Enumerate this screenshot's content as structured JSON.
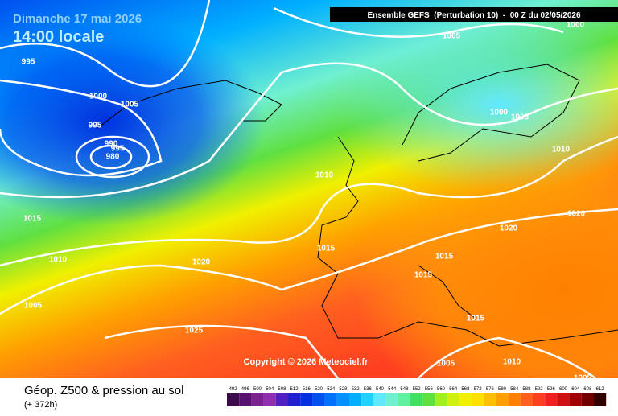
{
  "header": {
    "date": "Dimanche 17 mai 2026",
    "time": "14:00 locale",
    "model": "Ensemble GEFS  (Perturbation 10)  -  00 Z du 02/05/2026"
  },
  "isobar_labels": [
    "1000",
    "1005",
    "995",
    "1000",
    "1005",
    "995",
    "990",
    "995",
    "980",
    "1000",
    "1005",
    "1010",
    "1010",
    "1015",
    "1020",
    "1020",
    "1010",
    "1020",
    "1015",
    "1015",
    "1015",
    "1005",
    "1025",
    "1015",
    "1005",
    "1010",
    "1005"
  ],
  "copyright": "Copyright © 2026 Meteociel.fr",
  "footer": {
    "title": "Géop. Z500 & pression au sol",
    "lead": "(+ 372h)"
  },
  "legend": [
    {
      "value": 492,
      "color": "#3a0a4a"
    },
    {
      "value": 496,
      "color": "#5a1070"
    },
    {
      "value": 500,
      "color": "#7a2090"
    },
    {
      "value": 504,
      "color": "#9030b0"
    },
    {
      "value": 508,
      "color": "#5020c0"
    },
    {
      "value": 512,
      "color": "#2020d0"
    },
    {
      "value": 516,
      "color": "#0030e0"
    },
    {
      "value": 520,
      "color": "#0050f0"
    },
    {
      "value": 524,
      "color": "#0070ff"
    },
    {
      "value": 528,
      "color": "#0090ff"
    },
    {
      "value": 532,
      "color": "#00b0ff"
    },
    {
      "value": 536,
      "color": "#20d0ff"
    },
    {
      "value": 540,
      "color": "#60e8ff"
    },
    {
      "value": 544,
      "color": "#70f0d0"
    },
    {
      "value": 548,
      "color": "#60f0a0"
    },
    {
      "value": 552,
      "color": "#40e060"
    },
    {
      "value": 556,
      "color": "#60e040"
    },
    {
      "value": 560,
      "color": "#a0f020"
    },
    {
      "value": 564,
      "color": "#d0f010"
    },
    {
      "value": 568,
      "color": "#f0f000"
    },
    {
      "value": 572,
      "color": "#ffe000"
    },
    {
      "value": 576,
      "color": "#ffc000"
    },
    {
      "value": 580,
      "color": "#ffa000"
    },
    {
      "value": 584,
      "color": "#ff8000"
    },
    {
      "value": 588,
      "color": "#ff6020"
    },
    {
      "value": 592,
      "color": "#ff4020"
    },
    {
      "value": 596,
      "color": "#f02020"
    },
    {
      "value": 600,
      "color": "#d01010"
    },
    {
      "value": 604,
      "color": "#a00000"
    },
    {
      "value": 608,
      "color": "#700000"
    },
    {
      "value": 612,
      "color": "#300000"
    }
  ]
}
